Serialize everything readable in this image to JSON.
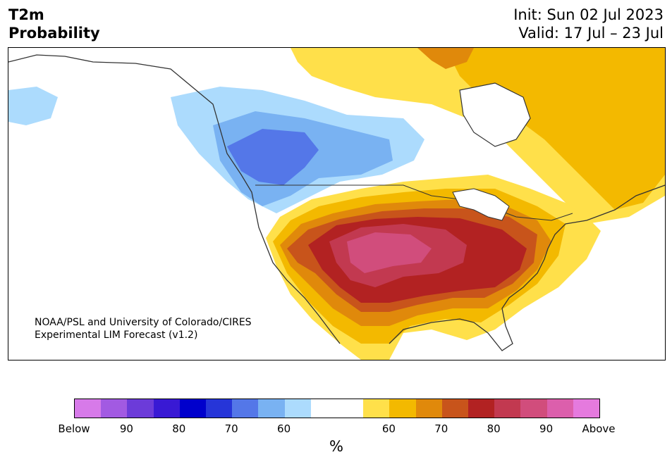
{
  "header": {
    "title_line1": "T2m",
    "title_line2": "Probability",
    "init_text": "Init: Sun 02 Jul 2023",
    "valid_text": "Valid: 17 Jul – 23 Jul"
  },
  "map": {
    "credit_line1": "NOAA/PSL and University of Colorado/CIRES",
    "credit_line2": "Experimental LIM Forecast (v1.2)"
  },
  "colorbar": {
    "unit": "%",
    "colors": [
      "#d77ae9",
      "#a25ae2",
      "#6c3bd9",
      "#3919d4",
      "#0000cc",
      "#2635d8",
      "#5477e8",
      "#79b2f2",
      "#acdbfd",
      "#ffffff",
      "#ffffff",
      "#ffe04a",
      "#f3b900",
      "#e0890b",
      "#c8541b",
      "#b22222",
      "#c23950",
      "#d14d7c",
      "#dc5fac",
      "#e57ade"
    ],
    "tick_labels": [
      "Below",
      "90",
      "80",
      "70",
      "60",
      "60",
      "70",
      "80",
      "90",
      "Above"
    ]
  }
}
